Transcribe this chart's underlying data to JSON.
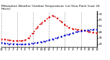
{
  "title": "Milwaukee Weather Outdoor Temperature (vs) Dew Point (Last 24 Hours)",
  "x_values": [
    0,
    1,
    2,
    3,
    4,
    5,
    6,
    7,
    8,
    9,
    10,
    11,
    12,
    13,
    14,
    15,
    16,
    17,
    18,
    19,
    20,
    21,
    22,
    23,
    24
  ],
  "temp_values": [
    28,
    27,
    26,
    25,
    25,
    25,
    26,
    30,
    38,
    47,
    54,
    59,
    64,
    67,
    63,
    57,
    52,
    47,
    45,
    44,
    43,
    42,
    40,
    39,
    38
  ],
  "dew_values": [
    22,
    21,
    20,
    20,
    19,
    19,
    19,
    20,
    21,
    22,
    23,
    24,
    26,
    28,
    30,
    32,
    34,
    36,
    38,
    40,
    41,
    42,
    43,
    44,
    44
  ],
  "temp_color": "#dd0000",
  "dew_color": "#0000cc",
  "grid_color": "#888888",
  "bg_color": "#ffffff",
  "ylim": [
    15,
    75
  ],
  "ytick_values": [
    20,
    30,
    40,
    50,
    60,
    70
  ],
  "ytick_labels": [
    "20",
    "30",
    "40",
    "50",
    "60",
    "70"
  ],
  "xtick_positions": [
    0,
    1,
    2,
    3,
    4,
    5,
    6,
    7,
    8,
    9,
    10,
    11,
    12,
    13,
    14,
    15,
    16,
    17,
    18,
    19,
    20,
    21,
    22,
    23,
    24
  ],
  "xtick_labels": [
    "12",
    "1",
    "2",
    "3",
    "4",
    "5",
    "6",
    "7",
    "8",
    "9",
    "10",
    "11",
    "12",
    "1",
    "2",
    "3",
    "4",
    "5",
    "6",
    "7",
    "8",
    "9",
    "10",
    "11",
    "12"
  ],
  "vgrid_positions": [
    0,
    4,
    8,
    12,
    16,
    20,
    24
  ],
  "title_fontsize": 3.2,
  "tick_fontsize": 2.8,
  "linewidth": 1.2,
  "dot_size": 1.5
}
